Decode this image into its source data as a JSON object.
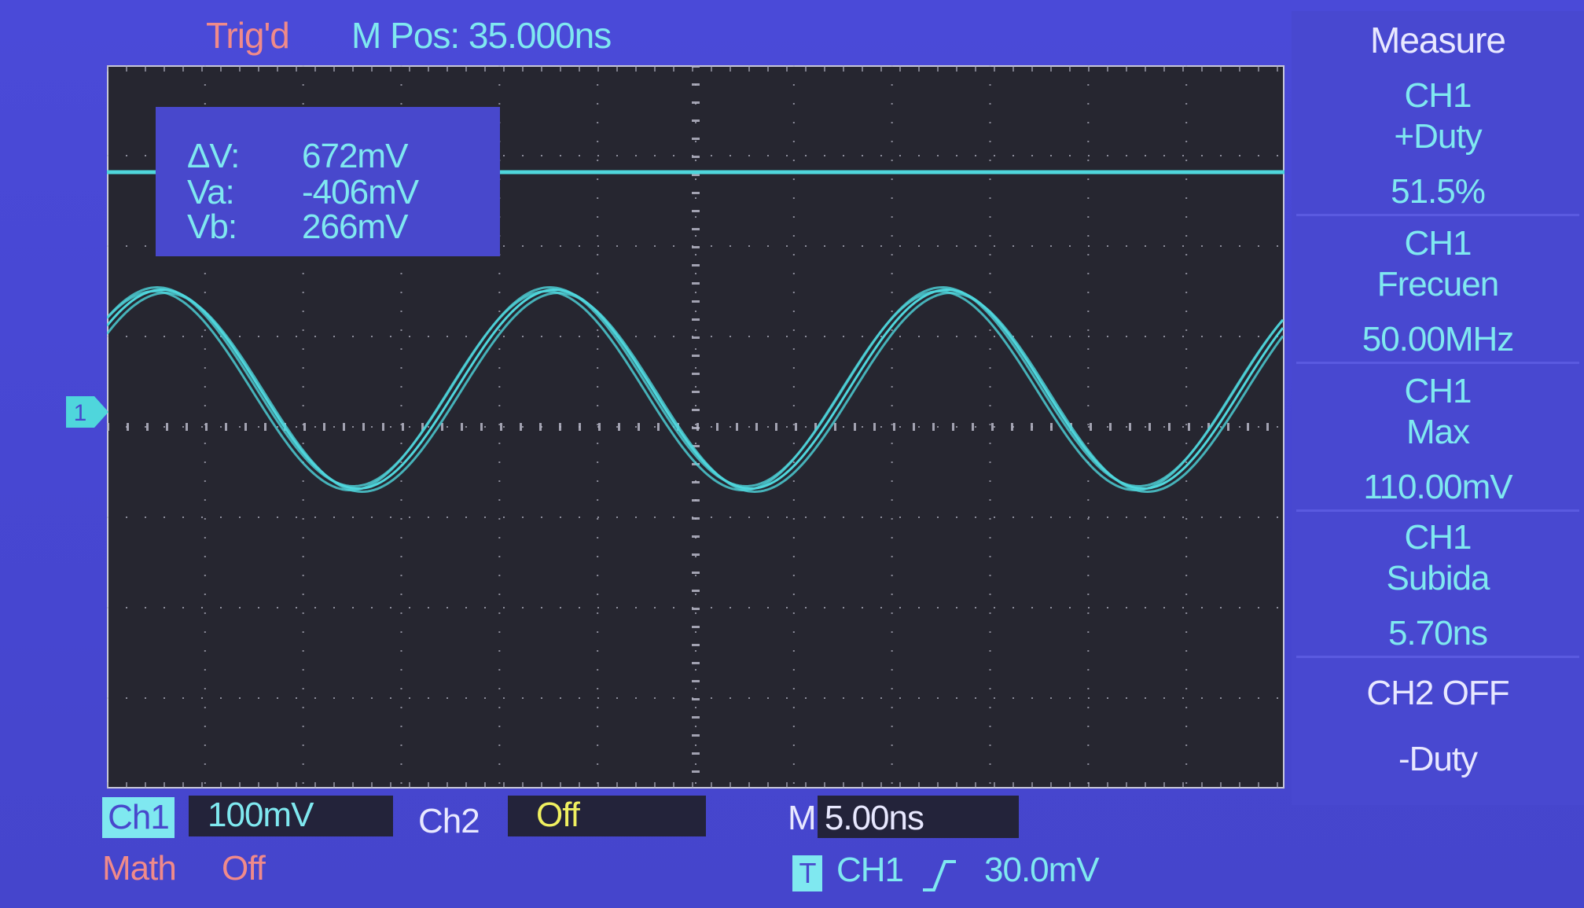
{
  "header": {
    "trigger_status": "Trig'd",
    "mpos_label": "M Pos: 35.000ns"
  },
  "cursor": {
    "dv_label": "ΔV:",
    "dv_value": "672mV",
    "va_label": "Va:",
    "va_value": "-406mV",
    "vb_label": "Vb:",
    "vb_value": "266mV"
  },
  "channel_marker": "1",
  "panel": {
    "title": "Measure",
    "measurements": [
      {
        "channel": "CH1",
        "name": "+Duty",
        "value": "51.5%"
      },
      {
        "channel": "CH1",
        "name": "Frecuen",
        "value": "50.00MHz"
      },
      {
        "channel": "CH1",
        "name": "Max",
        "value": "110.00mV"
      },
      {
        "channel": "CH1",
        "name": "Subida",
        "value": "5.70ns"
      }
    ],
    "ch2_status": "CH2 OFF",
    "extra": "-Duty"
  },
  "bottom": {
    "ch1_label": "Ch1",
    "ch1_scale": "100mV",
    "ch2_label": "Ch2",
    "ch2_scale": "Off",
    "timebase": "M 5.00ns",
    "math_label": "Math",
    "math_status": "Off",
    "trigger_icon": "T",
    "trigger_source": "CH1",
    "trigger_level": "30.0mV"
  },
  "colors": {
    "trace": "#4fd6dc",
    "accent_red": "#f08a8a",
    "cyan_text": "#7fe8f0",
    "off_yellow": "#f0f060"
  },
  "waveform": {
    "signal": "sine",
    "frequency_mhz": 50.0,
    "time_per_div_ns": 5.0,
    "volts_per_div_mv": 100,
    "max_mv": 110.0
  }
}
